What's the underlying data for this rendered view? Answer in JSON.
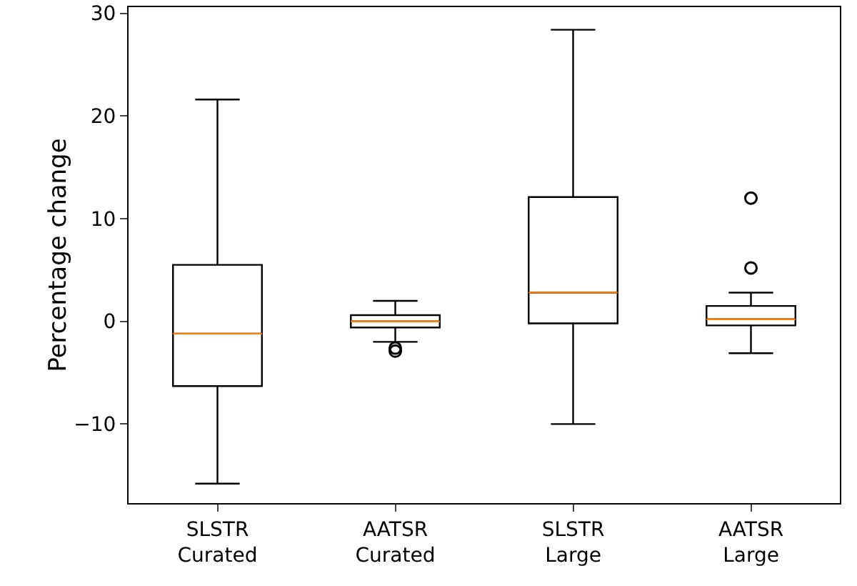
{
  "chart_data": {
    "type": "box",
    "ylabel": "Percentage change",
    "categories": [
      "SLSTR Curated",
      "AATSR Curated",
      "SLSTR Large",
      "AATSR Large"
    ],
    "boxes": [
      {
        "low": -15.8,
        "q1": -6.3,
        "median": -1.2,
        "q3": 5.5,
        "high": 21.6
      },
      {
        "low": -2,
        "q1": -0.6,
        "median": 0,
        "q3": 0.6,
        "high": 2,
        "outliers": [
          -2.6,
          -2.9
        ]
      },
      {
        "low": -10,
        "q1": -0.2,
        "median": 2.8,
        "q3": 12.1,
        "high": 28.4
      },
      {
        "low": -3.1,
        "q1": -0.4,
        "median": 0.2,
        "q3": 1.5,
        "high": 2.8,
        "outliers": [
          5.2,
          12
        ]
      }
    ],
    "ylim": [
      -17.7,
      30.6
    ],
    "yticks": [
      -10,
      0,
      10,
      20,
      30
    ],
    "grid": false
  }
}
